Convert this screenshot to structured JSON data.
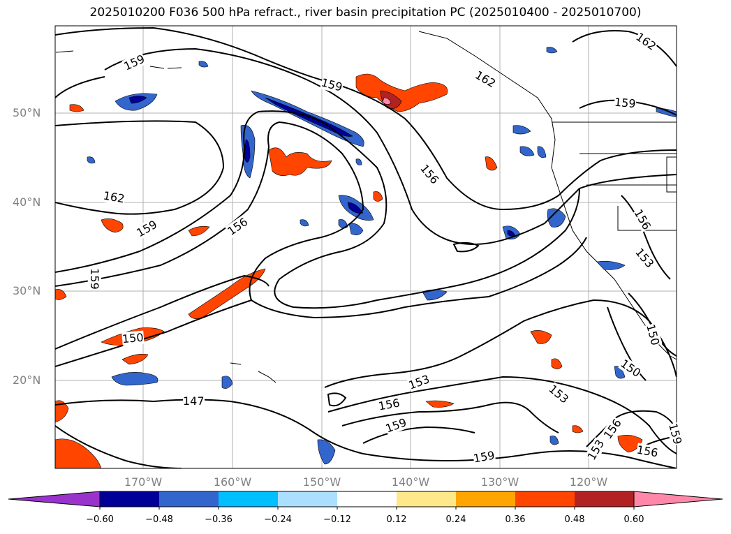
{
  "title": "2025010200 F036 500 hPa refract., river basin precipitation PC (2025010400 - 2025010700)",
  "map": {
    "lat_labels": [
      "50°N",
      "40°N",
      "30°N",
      "20°N"
    ],
    "lon_labels": [
      "170°W",
      "160°W",
      "150°W",
      "140°W",
      "130°W",
      "120°W"
    ],
    "contour_labels": [
      "159",
      "162",
      "159",
      "162",
      "159",
      "159",
      "156",
      "156",
      "159",
      "162",
      "156",
      "150",
      "147",
      "153",
      "156",
      "159",
      "159",
      "153",
      "153",
      "150",
      "150",
      "153",
      "156",
      "156",
      "159"
    ]
  },
  "colorbar": {
    "colors": [
      "#9933cc",
      "#000099",
      "#3366cc",
      "#00bfff",
      "#aadfff",
      "#ffffff",
      "#ffe88a",
      "#ffa500",
      "#ff4500",
      "#b22222",
      "#ff88aa"
    ],
    "tick_labels": [
      "−0.60",
      "−0.48",
      "−0.36",
      "−0.24",
      "−0.12",
      "0.12",
      "0.24",
      "0.36",
      "0.48",
      "0.60"
    ]
  }
}
